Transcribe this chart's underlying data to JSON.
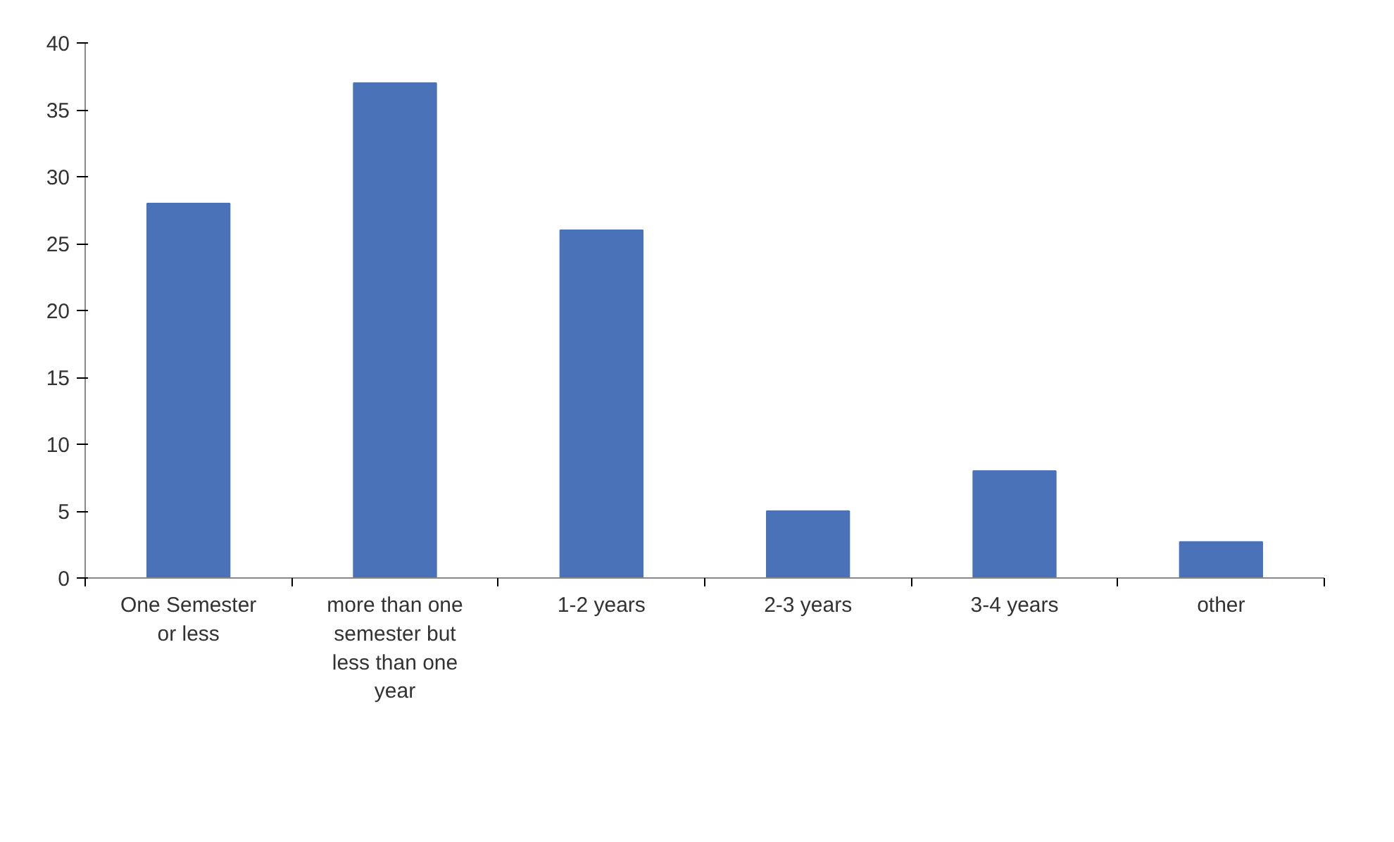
{
  "chart_data": {
    "type": "bar",
    "categories": [
      "One Semester or less",
      "more than one semester but less than one year",
      "1-2 years",
      "2-3 years",
      "3-4 years",
      "other"
    ],
    "values": [
      28,
      37,
      26,
      5,
      8,
      2.7
    ],
    "color": "#4a72b8",
    "ylim": [
      0,
      40
    ],
    "yticks": [
      0,
      5,
      10,
      15,
      20,
      25,
      30,
      35,
      40
    ]
  }
}
